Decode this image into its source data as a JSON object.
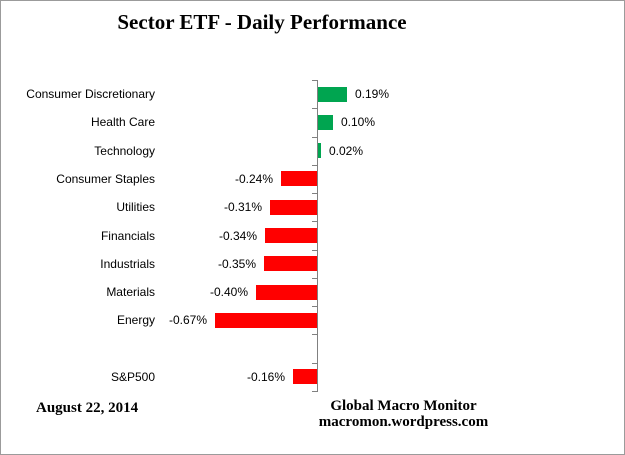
{
  "chart_data": {
    "type": "bar",
    "orientation": "horizontal",
    "title": "Sector ETF - Daily Performance",
    "xlabel": "",
    "ylabel": "",
    "grid": false,
    "legend": false,
    "value_label_position": "outside-end",
    "xlim_pct": [
      -0.8,
      0.3
    ],
    "categories": [
      "Consumer Discretionary",
      "Health Care",
      "Technology",
      "Consumer Staples",
      "Utilities",
      "Financials",
      "Industrials",
      "Materials",
      "Energy",
      "",
      "S&P500"
    ],
    "values": [
      0.19,
      0.1,
      0.02,
      -0.24,
      -0.31,
      -0.34,
      -0.35,
      -0.4,
      -0.67,
      null,
      -0.16
    ],
    "value_labels": [
      "0.19%",
      "0.10%",
      "0.02%",
      "-0.24%",
      "-0.31%",
      "-0.34%",
      "-0.35%",
      "-0.40%",
      "-0.67%",
      "",
      "-0.16%"
    ]
  },
  "colors": {
    "positive_bar": "#00A550",
    "negative_bar": "#FF0000",
    "axis": "#808080"
  },
  "footer": {
    "date": "August 22, 2014",
    "source_line1": "Global Macro Monitor",
    "source_line2": "macromon.wordpress.com"
  }
}
